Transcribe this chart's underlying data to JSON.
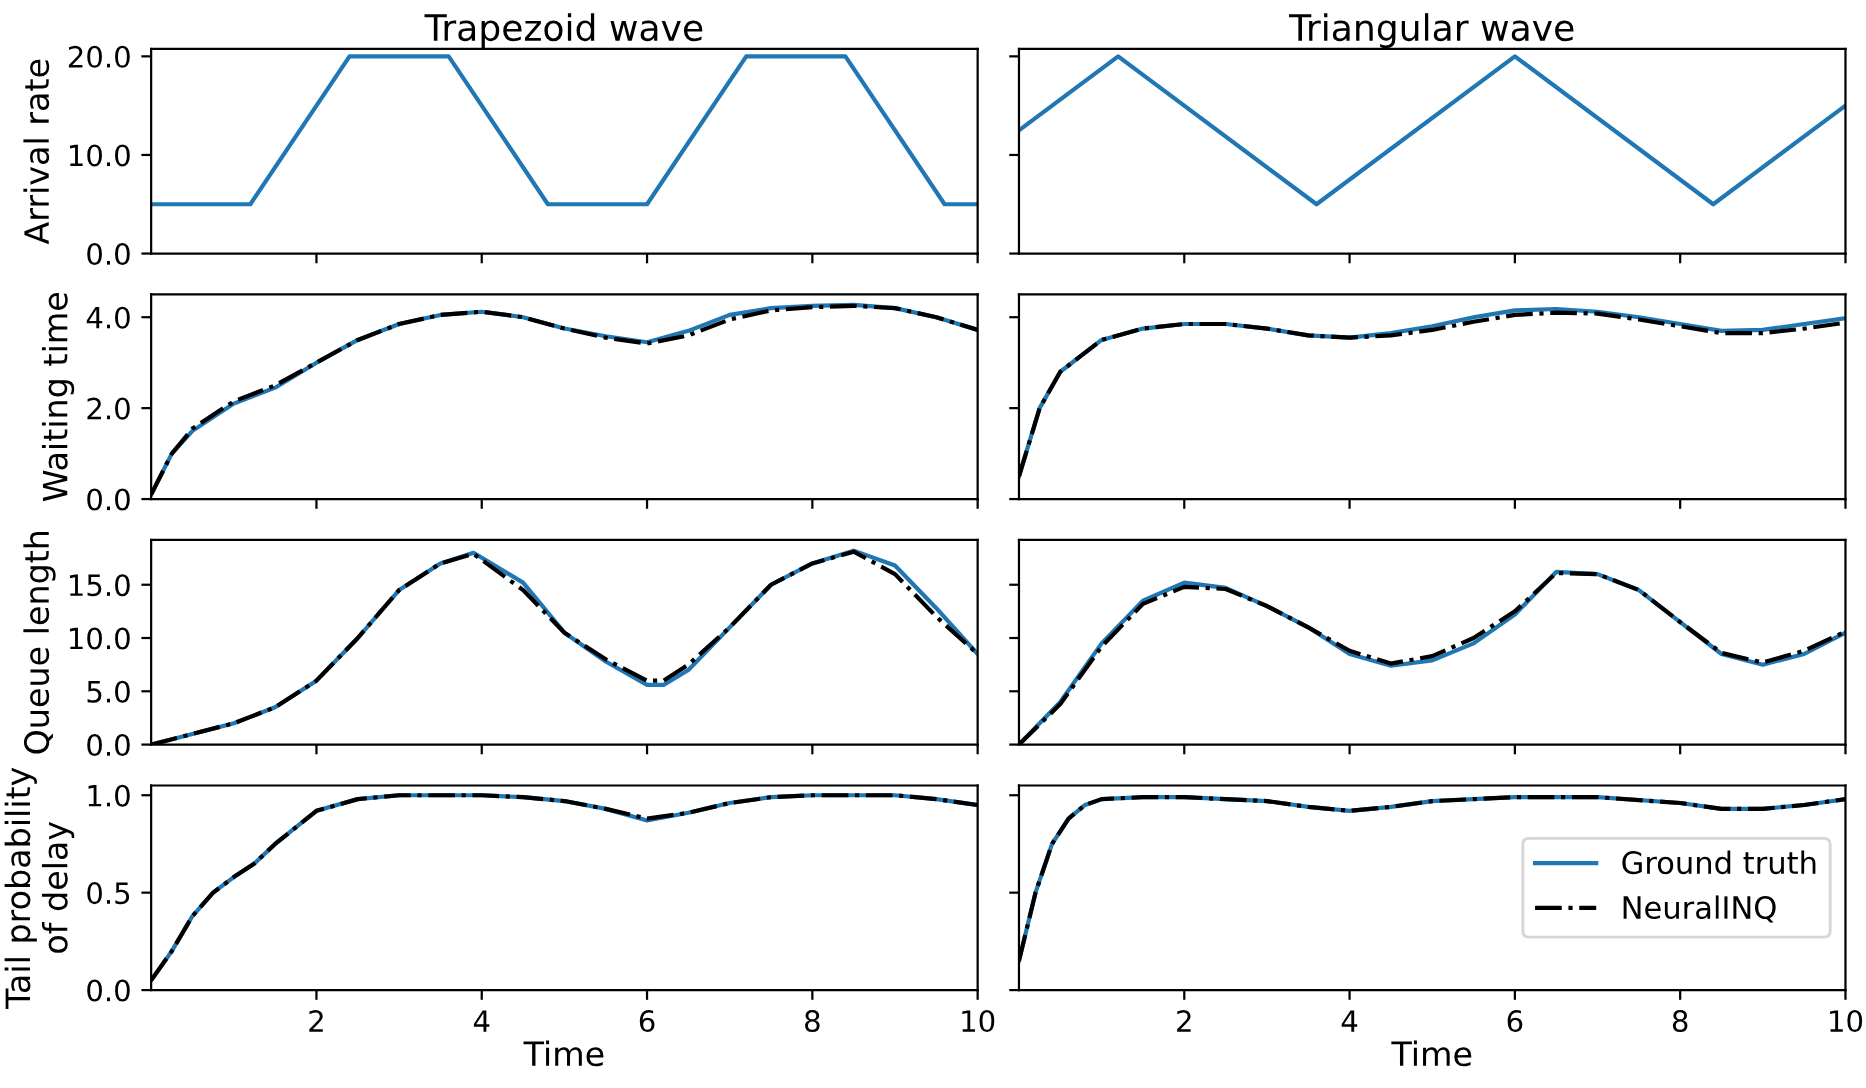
{
  "chart_data": [
    {
      "type": "line",
      "title": "Trapezoid wave",
      "ylabel": "Arrival rate",
      "xlim": [
        0,
        10
      ],
      "xticks": [
        2,
        4,
        6,
        8,
        10
      ],
      "ylim": [
        0,
        20.75
      ],
      "yticks": [
        {
          "value": 0,
          "label": "0.0"
        },
        {
          "value": 10,
          "label": "10.0"
        },
        {
          "value": 20,
          "label": "20.0"
        }
      ],
      "tick_labels": "y",
      "grid": false,
      "legend": false,
      "x": [
        0,
        1.2,
        2.4,
        3.6,
        4.8,
        6.0,
        7.2,
        8.4,
        9.6,
        10
      ],
      "series": [
        {
          "color": "#1f77b4",
          "line_style": "solid",
          "values": [
            5,
            5,
            20,
            20,
            5,
            5,
            20,
            20,
            5,
            5
          ]
        }
      ]
    },
    {
      "type": "line",
      "title": "Triangular wave",
      "xlim": [
        0,
        10
      ],
      "xticks": [
        2,
        4,
        6,
        8,
        10
      ],
      "ylim": [
        0,
        20.75
      ],
      "yticks": [
        0,
        10,
        20
      ],
      "tick_labels": false,
      "grid": false,
      "legend": false,
      "x": [
        0,
        1.2,
        3.6,
        6.0,
        8.4,
        10
      ],
      "series": [
        {
          "color": "#1f77b4",
          "line_style": "solid",
          "values": [
            12.5,
            20,
            5,
            20,
            5,
            15
          ]
        }
      ]
    },
    {
      "type": "line",
      "ylabel": "Waiting time",
      "xlim": [
        0,
        10
      ],
      "xticks": [
        2,
        4,
        6,
        8,
        10
      ],
      "ylim": [
        0,
        4.5
      ],
      "yticks": [
        {
          "value": 0,
          "label": "0.0"
        },
        {
          "value": 2,
          "label": "2.0"
        },
        {
          "value": 4,
          "label": "4.0"
        }
      ],
      "tick_labels": "y",
      "grid": false,
      "legend": false,
      "x": [
        0,
        0.25,
        0.5,
        1,
        1.5,
        2,
        2.5,
        3,
        3.5,
        4,
        4.5,
        5,
        5.5,
        6,
        6.5,
        7,
        7.5,
        8,
        8.5,
        9,
        9.5,
        10
      ],
      "series": [
        {
          "color": "#1f77b4",
          "line_style": "solid",
          "values": [
            0.1,
            1.0,
            1.5,
            2.1,
            2.45,
            3.0,
            3.5,
            3.85,
            4.05,
            4.12,
            4.0,
            3.75,
            3.58,
            3.45,
            3.7,
            4.05,
            4.2,
            4.25,
            4.27,
            4.2,
            4.0,
            3.72
          ]
        },
        {
          "color": "#000000",
          "line_style": "dashdot",
          "values": [
            0.1,
            1.0,
            1.55,
            2.15,
            2.5,
            3.0,
            3.5,
            3.85,
            4.05,
            4.12,
            4.0,
            3.75,
            3.55,
            3.42,
            3.6,
            3.95,
            4.15,
            4.22,
            4.25,
            4.2,
            4.0,
            3.72
          ]
        }
      ]
    },
    {
      "type": "line",
      "xlim": [
        0,
        10
      ],
      "xticks": [
        2,
        4,
        6,
        8,
        10
      ],
      "ylim": [
        0,
        4.5
      ],
      "yticks": [
        0,
        2,
        4
      ],
      "tick_labels": false,
      "grid": false,
      "legend": false,
      "x": [
        0,
        0.25,
        0.5,
        1,
        1.5,
        2,
        2.5,
        3,
        3.5,
        4,
        4.5,
        5,
        5.5,
        6,
        6.5,
        7,
        7.5,
        8,
        8.5,
        9,
        9.5,
        10
      ],
      "series": [
        {
          "color": "#1f77b4",
          "line_style": "solid",
          "values": [
            0.5,
            2.0,
            2.8,
            3.5,
            3.75,
            3.85,
            3.85,
            3.75,
            3.6,
            3.55,
            3.65,
            3.8,
            4.0,
            4.15,
            4.18,
            4.12,
            4.0,
            3.85,
            3.7,
            3.72,
            3.85,
            3.98
          ]
        },
        {
          "color": "#000000",
          "line_style": "dashdot",
          "values": [
            0.5,
            2.0,
            2.8,
            3.5,
            3.75,
            3.85,
            3.85,
            3.75,
            3.6,
            3.55,
            3.6,
            3.72,
            3.9,
            4.05,
            4.1,
            4.08,
            3.95,
            3.8,
            3.65,
            3.65,
            3.75,
            3.88
          ]
        }
      ]
    },
    {
      "type": "line",
      "ylabel": "Queue length",
      "xlim": [
        0,
        10
      ],
      "xticks": [
        2,
        4,
        6,
        8,
        10
      ],
      "ylim": [
        0,
        19.2
      ],
      "yticks": [
        {
          "value": 0,
          "label": "0.0"
        },
        {
          "value": 5,
          "label": "5.0"
        },
        {
          "value": 10,
          "label": "10.0"
        },
        {
          "value": 15,
          "label": "15.0"
        }
      ],
      "tick_labels": "y",
      "grid": false,
      "legend": false,
      "x": [
        0,
        0.5,
        1,
        1.2,
        1.5,
        2,
        2.5,
        3,
        3.5,
        3.9,
        4.5,
        5,
        5.5,
        6,
        6.2,
        6.5,
        7,
        7.5,
        8,
        8.5,
        9,
        9.5,
        10
      ],
      "series": [
        {
          "color": "#1f77b4",
          "line_style": "solid",
          "values": [
            0,
            1.0,
            2.0,
            2.6,
            3.5,
            6.0,
            10.0,
            14.5,
            17.0,
            18.0,
            15.2,
            10.5,
            7.8,
            5.6,
            5.6,
            7.0,
            11.0,
            15.0,
            17.0,
            18.2,
            16.8,
            12.8,
            8.5
          ]
        },
        {
          "color": "#000000",
          "line_style": "dashdot",
          "values": [
            0,
            1.0,
            2.0,
            2.6,
            3.5,
            6.0,
            10.0,
            14.5,
            17.0,
            17.9,
            14.5,
            10.5,
            8.0,
            6.0,
            6.0,
            7.5,
            11.0,
            15.0,
            17.0,
            18.1,
            16.0,
            12.0,
            8.5
          ]
        }
      ]
    },
    {
      "type": "line",
      "xlim": [
        0,
        10
      ],
      "xticks": [
        2,
        4,
        6,
        8,
        10
      ],
      "ylim": [
        0,
        19.2
      ],
      "yticks": [
        0,
        5,
        10,
        15
      ],
      "tick_labels": false,
      "grid": false,
      "legend": false,
      "x": [
        0,
        0.5,
        1,
        1.5,
        2,
        2.5,
        3,
        3.5,
        4,
        4.5,
        5,
        5.5,
        6,
        6.5,
        7,
        7.5,
        8,
        8.5,
        9,
        9.5,
        10
      ],
      "series": [
        {
          "color": "#1f77b4",
          "line_style": "solid",
          "values": [
            0,
            4,
            9.5,
            13.5,
            15.2,
            14.7,
            13.0,
            11.0,
            8.5,
            7.4,
            7.9,
            9.5,
            12.2,
            16.2,
            16.0,
            14.5,
            11.5,
            8.5,
            7.5,
            8.5,
            10.5
          ]
        },
        {
          "color": "#000000",
          "line_style": "dashdot",
          "values": [
            0,
            3.8,
            9.2,
            13.2,
            14.8,
            14.6,
            13.0,
            11.0,
            8.8,
            7.6,
            8.3,
            10.0,
            12.5,
            16.1,
            16.0,
            14.5,
            11.5,
            8.6,
            7.7,
            8.8,
            10.6
          ]
        }
      ]
    },
    {
      "type": "line",
      "ylabel": "Tail probability\nof delay",
      "xlabel": "Time",
      "xlim": [
        0,
        10
      ],
      "xticks": [
        2,
        4,
        6,
        8,
        10
      ],
      "ylim": [
        0,
        1.05
      ],
      "yticks": [
        {
          "value": 0,
          "label": "0.0"
        },
        0.5,
        {
          "value": 1,
          "label": "1.0"
        }
      ],
      "grid": false,
      "legend": false,
      "x": [
        0,
        0.25,
        0.5,
        0.75,
        1,
        1.25,
        1.5,
        2,
        2.5,
        3,
        4,
        4.5,
        5,
        5.5,
        6,
        6.5,
        7,
        7.5,
        8,
        9,
        9.5,
        10
      ],
      "series": [
        {
          "color": "#1f77b4",
          "line_style": "solid",
          "values": [
            0.05,
            0.2,
            0.38,
            0.5,
            0.58,
            0.65,
            0.75,
            0.92,
            0.98,
            1.0,
            1.0,
            0.99,
            0.97,
            0.93,
            0.87,
            0.91,
            0.96,
            0.99,
            1.0,
            1.0,
            0.98,
            0.95
          ]
        },
        {
          "color": "#000000",
          "line_style": "dashdot",
          "values": [
            0.05,
            0.2,
            0.38,
            0.5,
            0.58,
            0.65,
            0.75,
            0.92,
            0.98,
            1.0,
            1.0,
            0.99,
            0.97,
            0.93,
            0.88,
            0.91,
            0.96,
            0.99,
            1.0,
            1.0,
            0.98,
            0.95
          ]
        }
      ]
    },
    {
      "type": "line",
      "xlabel": "Time",
      "xlim": [
        0,
        10
      ],
      "xticks": [
        2,
        4,
        6,
        8,
        10
      ],
      "ylim": [
        0,
        1.05
      ],
      "yticks": [
        0,
        0.5,
        1
      ],
      "tick_labels": "x",
      "grid": false,
      "legend": "right",
      "x": [
        0,
        0.2,
        0.4,
        0.6,
        0.8,
        1,
        1.5,
        2,
        3,
        3.5,
        4,
        4.5,
        5,
        6,
        7,
        8,
        8.5,
        9,
        9.5,
        10
      ],
      "series": [
        {
          "name": "Ground truth",
          "color": "#1f77b4",
          "line_style": "solid",
          "values": [
            0.15,
            0.5,
            0.75,
            0.88,
            0.95,
            0.98,
            0.99,
            0.99,
            0.97,
            0.94,
            0.92,
            0.94,
            0.97,
            0.99,
            0.99,
            0.96,
            0.93,
            0.93,
            0.95,
            0.98
          ]
        },
        {
          "name": "NeuralINQ",
          "color": "#000000",
          "line_style": "dashdot",
          "values": [
            0.15,
            0.5,
            0.75,
            0.88,
            0.95,
            0.98,
            0.99,
            0.99,
            0.97,
            0.94,
            0.92,
            0.94,
            0.97,
            0.99,
            0.99,
            0.96,
            0.93,
            0.93,
            0.95,
            0.98
          ]
        }
      ]
    }
  ]
}
